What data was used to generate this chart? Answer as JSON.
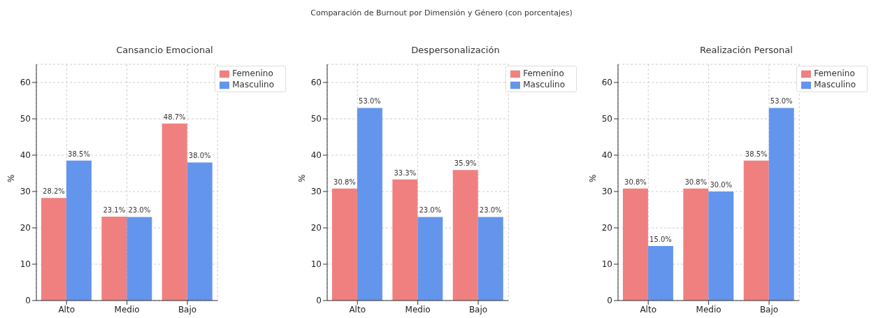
{
  "chart_data": [
    {
      "type": "bar",
      "title": "Cansancio Emocional",
      "annotations": [
        "Comparación de Burnout por Dimensión y Género (con porcentajes)"
      ],
      "ylabel": "%",
      "categories": [
        "Alto",
        "Medio",
        "Bajo"
      ],
      "series": [
        {
          "name": "Femenino",
          "color": "#f08080",
          "values": [
            28.2,
            23.1,
            48.7
          ],
          "value_labels": [
            "28.2%",
            "23.1%",
            "48.7%"
          ]
        },
        {
          "name": "Masculino",
          "color": "#6495ed",
          "values": [
            38.5,
            23.0,
            38.0
          ],
          "value_labels": [
            "38.5%",
            "23.0%",
            "38.0%"
          ]
        }
      ],
      "ylim": [
        0,
        65
      ],
      "yticks": [
        0,
        10,
        20,
        30,
        40,
        50,
        60
      ],
      "grid": true,
      "legend": "top right"
    },
    {
      "type": "bar",
      "title": "Despersonalización",
      "ylabel": "%",
      "categories": [
        "Alto",
        "Medio",
        "Bajo"
      ],
      "series": [
        {
          "name": "Femenino",
          "color": "#f08080",
          "values": [
            30.8,
            33.3,
            35.9
          ],
          "value_labels": [
            "30.8%",
            "33.3%",
            "35.9%"
          ]
        },
        {
          "name": "Masculino",
          "color": "#6495ed",
          "values": [
            53.0,
            23.0,
            23.0
          ],
          "value_labels": [
            "53.0%",
            "23.0%",
            "23.0%"
          ]
        }
      ],
      "ylim": [
        0,
        65
      ],
      "yticks": [
        0,
        10,
        20,
        30,
        40,
        50,
        60
      ],
      "grid": true,
      "legend": "top right"
    },
    {
      "type": "bar",
      "title": "Realización Personal",
      "ylabel": "%",
      "categories": [
        "Alto",
        "Medio",
        "Bajo"
      ],
      "series": [
        {
          "name": "Femenino",
          "color": "#f08080",
          "values": [
            30.8,
            30.8,
            38.5
          ],
          "value_labels": [
            "30.8%",
            "30.8%",
            "38.5%"
          ]
        },
        {
          "name": "Masculino",
          "color": "#6495ed",
          "values": [
            15.0,
            30.0,
            53.0
          ],
          "value_labels": [
            "15.0%",
            "30.0%",
            "53.0%"
          ]
        }
      ],
      "ylim": [
        0,
        65
      ],
      "yticks": [
        0,
        10,
        20,
        30,
        40,
        50,
        60
      ],
      "grid": true,
      "legend": "top right"
    }
  ]
}
